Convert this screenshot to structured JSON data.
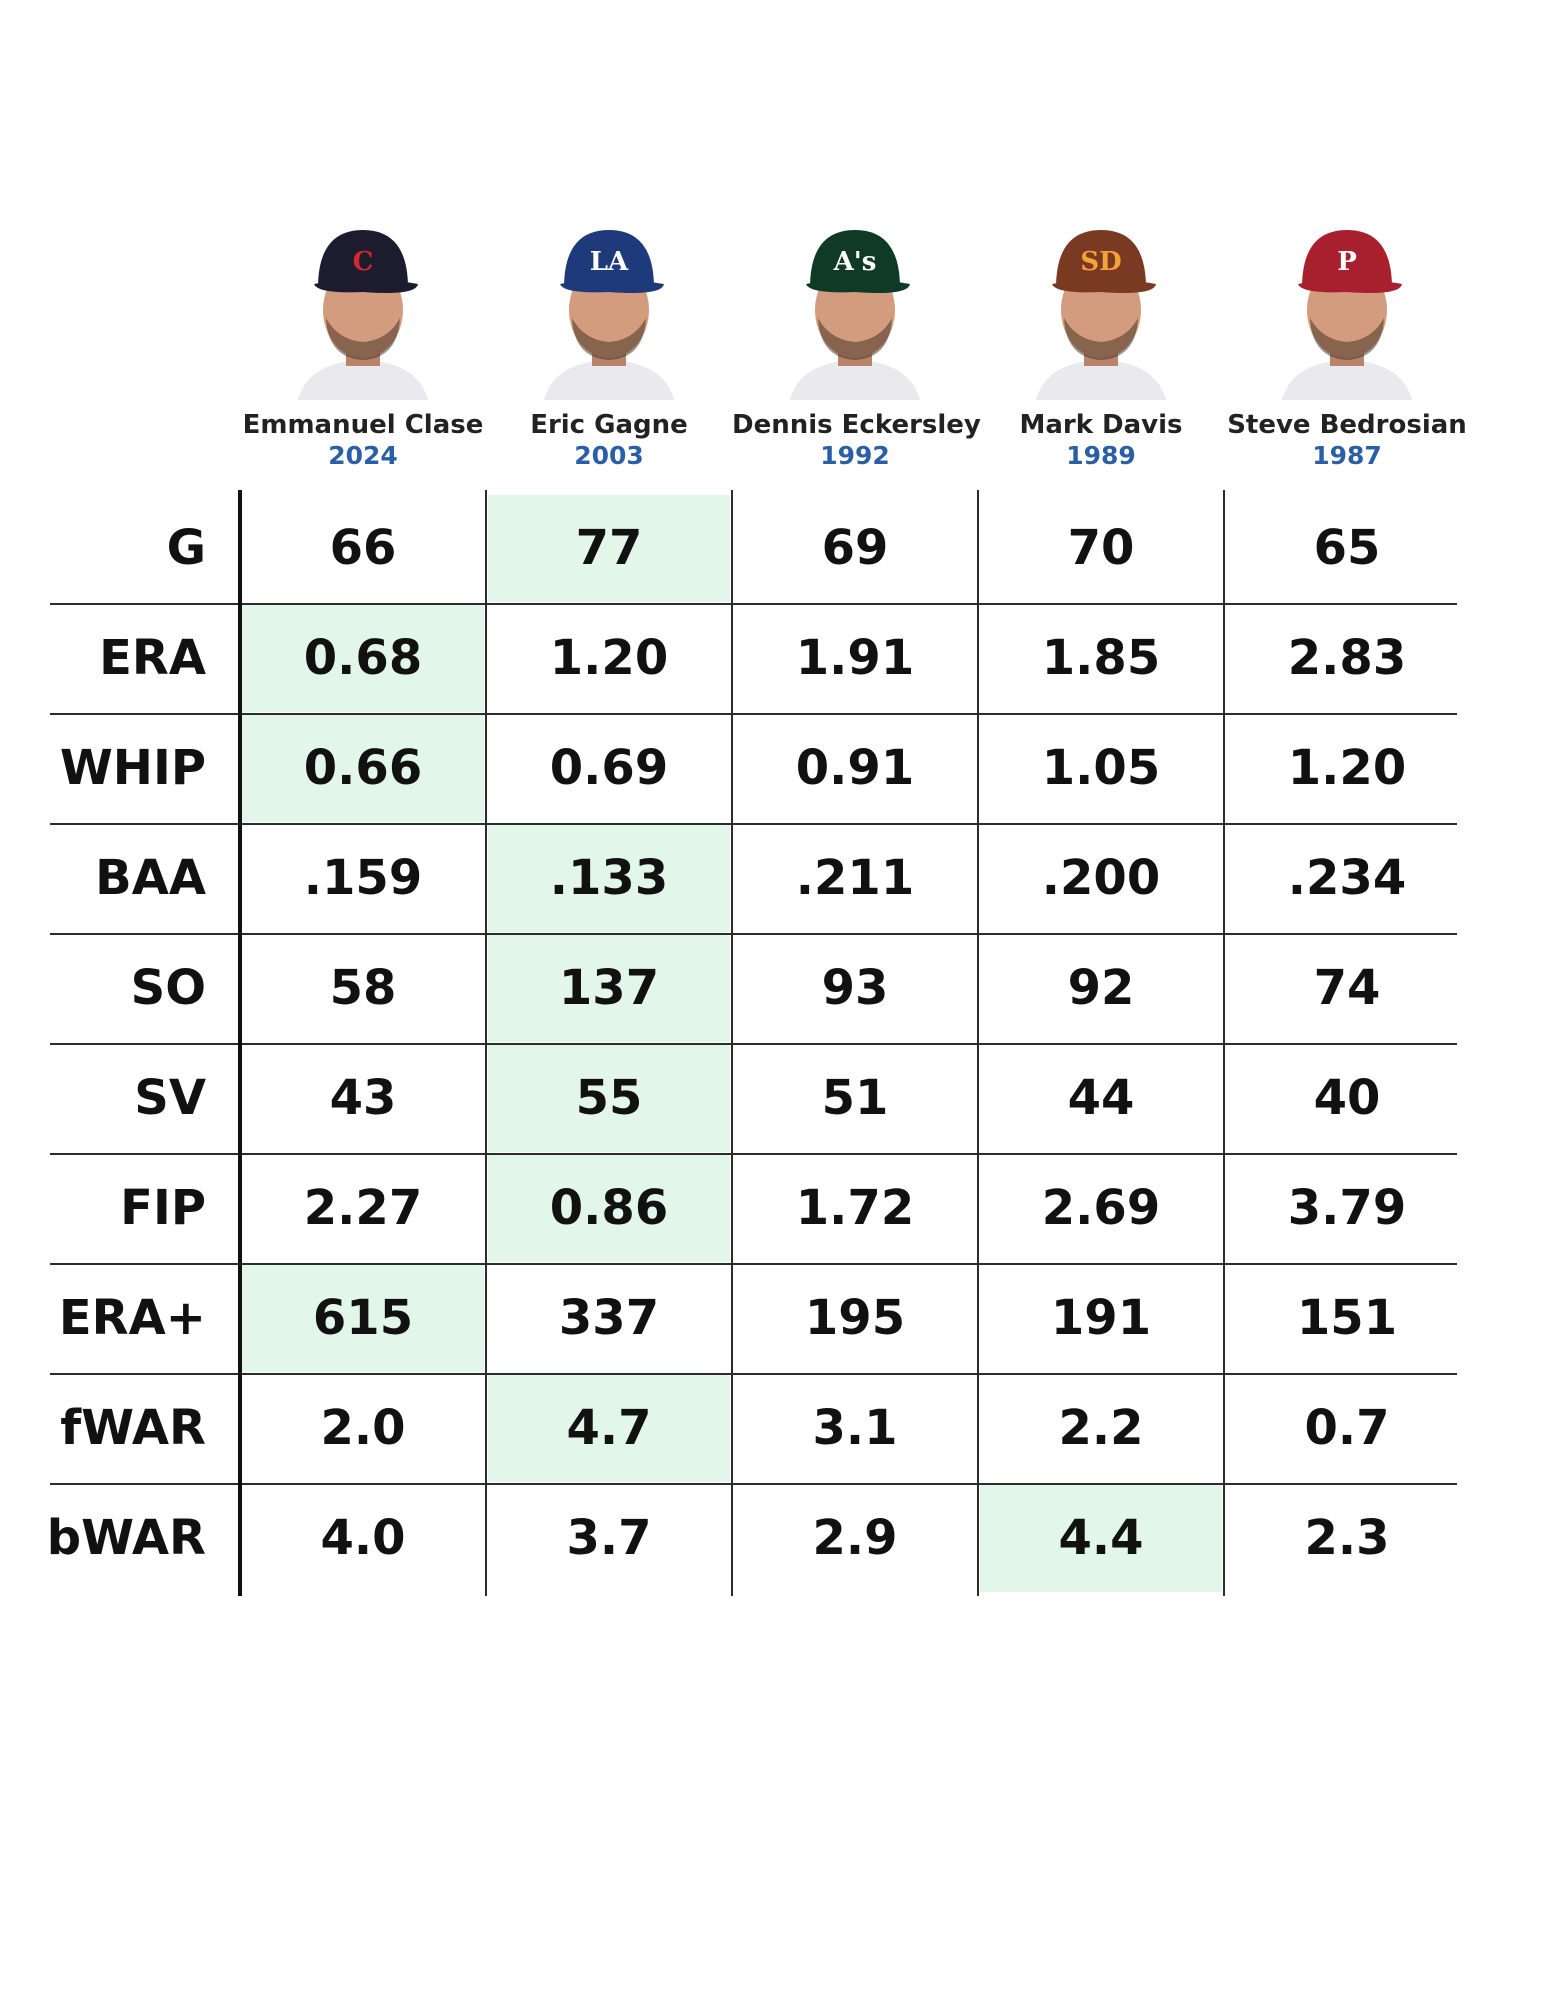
{
  "chart_data": {
    "type": "table",
    "players": [
      {
        "name": "Emmanuel Clase",
        "year": "2024",
        "cap_color": "#1c1c2e",
        "cap_logo": "C",
        "logo_color": "#d2282e"
      },
      {
        "name": "Eric Gagne",
        "year": "2003",
        "cap_color": "#1f3a7a",
        "cap_logo": "LA",
        "logo_color": "#ffffff"
      },
      {
        "name": "Dennis Eckersley",
        "year": "1992",
        "cap_color": "#0f3a26",
        "cap_logo": "A's",
        "logo_color": "#ffffff"
      },
      {
        "name": "Mark Davis",
        "year": "1989",
        "cap_color": "#7a3a22",
        "cap_logo": "SD",
        "logo_color": "#f4a23a"
      },
      {
        "name": "Steve Bedrosian",
        "year": "1987",
        "cap_color": "#a8202e",
        "cap_logo": "P",
        "logo_color": "#ffffff"
      }
    ],
    "stats": [
      "G",
      "ERA",
      "WHIP",
      "BAA",
      "SO",
      "SV",
      "FIP",
      "ERA+",
      "fWAR",
      "bWAR"
    ],
    "values": [
      [
        "66",
        "77",
        "69",
        "70",
        "65"
      ],
      [
        "0.68",
        "1.20",
        "1.91",
        "1.85",
        "2.83"
      ],
      [
        "0.66",
        "0.69",
        "0.91",
        "1.05",
        "1.20"
      ],
      [
        ".159",
        ".133",
        ".211",
        ".200",
        ".234"
      ],
      [
        "58",
        "137",
        "93",
        "92",
        "74"
      ],
      [
        "43",
        "55",
        "51",
        "44",
        "40"
      ],
      [
        "2.27",
        "0.86",
        "1.72",
        "2.69",
        "3.79"
      ],
      [
        "615",
        "337",
        "195",
        "191",
        "151"
      ],
      [
        "2.0",
        "4.7",
        "3.1",
        "2.2",
        "0.7"
      ],
      [
        "4.0",
        "3.7",
        "2.9",
        "4.4",
        "2.3"
      ]
    ],
    "best_column": [
      1,
      0,
      0,
      1,
      1,
      1,
      1,
      0,
      1,
      3
    ],
    "highlight_color": "#e3f6ea",
    "year_color": "#2a5fa8"
  }
}
